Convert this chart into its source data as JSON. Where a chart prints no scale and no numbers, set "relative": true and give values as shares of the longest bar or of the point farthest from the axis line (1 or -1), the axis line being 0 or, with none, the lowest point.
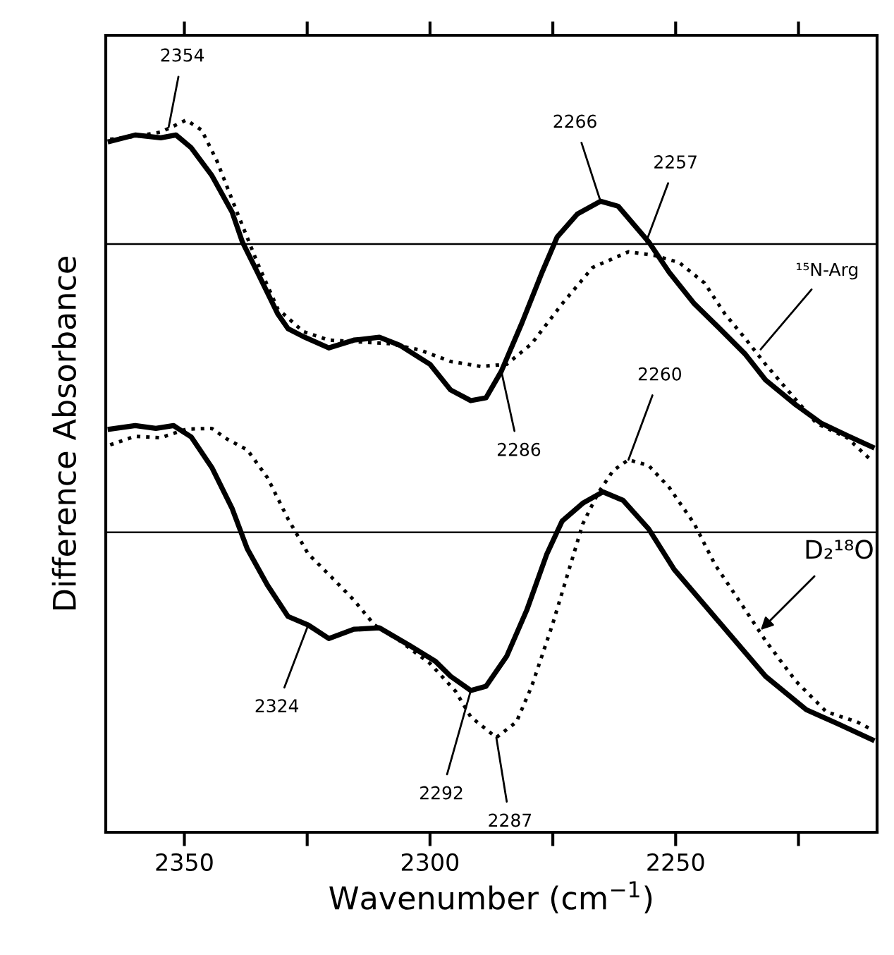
{
  "chart_data": {
    "type": "line",
    "relative": true,
    "xlabel": "Wavenumber (cm$^{−1}$)",
    "ylabel": "Difference Absorbance",
    "xlim": [
      2366,
      2209
    ],
    "xticks": [
      2350,
      {
        "value": 2325,
        "label": null
      },
      2300,
      {
        "value": 2275,
        "label": null
      },
      2250,
      {
        "value": 2225,
        "label": null
      }
    ],
    "grid": false,
    "legend": false,
    "ref_lines": [
      {
        "axis": "y",
        "value": 0.826,
        "color": "#000000"
      },
      {
        "axis": "y",
        "value": 0.421,
        "color": "#000000"
      }
    ],
    "series": [
      {
        "color": "#000000",
        "line_style": "solid",
        "x": [
          2365.1,
          2360.0,
          2354.8,
          2351.7,
          2348.6,
          2344.4,
          2340.3,
          2338.2,
          2335.1,
          2331.0,
          2328.9,
          2325.8,
          2320.6,
          2315.5,
          2310.3,
          2306.2,
          2300.0,
          2295.8,
          2291.7,
          2288.6,
          2285.5,
          2281.3,
          2277.2,
          2274.1,
          2270.0,
          2265.3,
          2261.7,
          2258.6,
          2255.5,
          2251.3,
          2246.2,
          2241.0,
          2235.8,
          2231.7,
          2225.5,
          2220.3,
          2215.1,
          2210.0
        ],
        "values": [
          0.97,
          0.979,
          0.975,
          0.979,
          0.961,
          0.922,
          0.871,
          0.829,
          0.786,
          0.728,
          0.707,
          0.696,
          0.68,
          0.691,
          0.695,
          0.684,
          0.657,
          0.621,
          0.606,
          0.61,
          0.647,
          0.715,
          0.786,
          0.836,
          0.868,
          0.886,
          0.879,
          0.854,
          0.829,
          0.786,
          0.742,
          0.707,
          0.671,
          0.635,
          0.6,
          0.574,
          0.557,
          0.541
        ]
      },
      {
        "color": "#000000",
        "line_style": "dotted",
        "x": [
          2365.1,
          2360.0,
          2354.8,
          2349.6,
          2346.5,
          2343.4,
          2339.3,
          2335.1,
          2331.0,
          2325.8,
          2320.6,
          2315.5,
          2308.2,
          2302.0,
          2295.8,
          2289.6,
          2284.4,
          2279.3,
          2273.1,
          2266.9,
          2259.6,
          2254.4,
          2249.3,
          2244.1,
          2240.0,
          2235.8,
          2231.7,
          2225.5,
          2221.3,
          2215.1,
          2210.0
        ],
        "values": [
          0.973,
          0.977,
          0.983,
          1.0,
          0.986,
          0.943,
          0.871,
          0.799,
          0.735,
          0.703,
          0.691,
          0.689,
          0.686,
          0.677,
          0.661,
          0.654,
          0.657,
          0.686,
          0.742,
          0.793,
          0.815,
          0.81,
          0.8,
          0.771,
          0.728,
          0.693,
          0.657,
          0.607,
          0.574,
          0.554,
          0.521
        ]
      },
      {
        "color": "#000000",
        "line_style": "solid",
        "x": [
          2365.1,
          2360.0,
          2355.8,
          2352.2,
          2348.6,
          2344.4,
          2340.3,
          2337.2,
          2333.1,
          2328.9,
          2324.8,
          2320.6,
          2315.5,
          2310.3,
          2304.1,
          2298.9,
          2295.8,
          2291.7,
          2288.6,
          2284.4,
          2280.3,
          2276.2,
          2273.1,
          2268.9,
          2264.8,
          2260.7,
          2255.5,
          2250.3,
          2244.1,
          2237.9,
          2231.7,
          2223.4,
          2217.2,
          2210.0
        ],
        "values": [
          0.566,
          0.571,
          0.567,
          0.571,
          0.555,
          0.512,
          0.455,
          0.398,
          0.347,
          0.303,
          0.291,
          0.272,
          0.285,
          0.287,
          0.262,
          0.24,
          0.219,
          0.199,
          0.205,
          0.247,
          0.312,
          0.391,
          0.437,
          0.462,
          0.478,
          0.466,
          0.426,
          0.369,
          0.319,
          0.269,
          0.219,
          0.172,
          0.153,
          0.13
        ]
      },
      {
        "color": "#000000",
        "line_style": "dotted",
        "x": [
          2365.1,
          2360.0,
          2354.8,
          2349.6,
          2344.4,
          2341.3,
          2337.2,
          2333.1,
          2328.9,
          2324.8,
          2319.6,
          2315.5,
          2311.3,
          2306.2,
          2300.0,
          2294.8,
          2291.7,
          2286.5,
          2282.4,
          2279.3,
          2275.1,
          2272.0,
          2268.9,
          2265.8,
          2262.7,
          2259.6,
          2255.5,
          2251.3,
          2246.2,
          2242.0,
          2235.8,
          2231.7,
          2225.5,
          2219.3,
          2213.1,
          2210.0
        ],
        "values": [
          0.544,
          0.556,
          0.554,
          0.566,
          0.567,
          0.552,
          0.537,
          0.498,
          0.44,
          0.391,
          0.355,
          0.326,
          0.291,
          0.269,
          0.237,
          0.198,
          0.162,
          0.133,
          0.155,
          0.205,
          0.291,
          0.362,
          0.433,
          0.476,
          0.508,
          0.523,
          0.515,
          0.484,
          0.433,
          0.376,
          0.312,
          0.269,
          0.212,
          0.169,
          0.155,
          0.144
        ]
      }
    ],
    "annotations": [
      {
        "text": "2354",
        "x": 2353.2,
        "y": 0.99
      },
      {
        "text": "2266",
        "x": 2265.3,
        "y": 0.886
      },
      {
        "text": "2257",
        "x": 2256.0,
        "y": 0.829
      },
      {
        "text": "2286",
        "x": 2285.5,
        "y": 0.648
      },
      {
        "text": "¹⁵N-Arg",
        "x": 2232.7,
        "y": 0.678
      },
      {
        "text": "2260",
        "x": 2259.6,
        "y": 0.523
      },
      {
        "text": "2324",
        "x": 2324.8,
        "y": 0.291
      },
      {
        "text": "2292",
        "x": 2291.7,
        "y": 0.199
      },
      {
        "text": "2287",
        "x": 2286.5,
        "y": 0.133
      },
      {
        "text": "D₂¹⁸O",
        "x": 2232.7,
        "y": 0.284
      }
    ]
  }
}
